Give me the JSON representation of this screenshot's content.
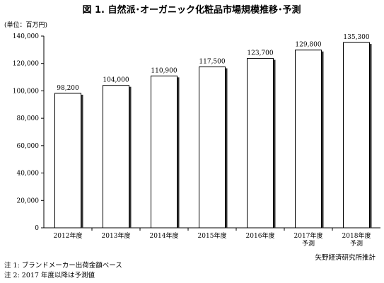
{
  "chart_data": {
    "type": "bar",
    "title": "図 1.  自然派･オーガニック化粧品市場規模推移･予測",
    "ylabel": "(単位：百万円)",
    "xlabel": "",
    "ylim": [
      0,
      140000
    ],
    "yticks": [
      "0",
      "20,000",
      "40,000",
      "60,000",
      "80,000",
      "100,000",
      "120,000",
      "140,000"
    ],
    "categories": [
      [
        "2012年度"
      ],
      [
        "2013年度"
      ],
      [
        "2014年度"
      ],
      [
        "2015年度"
      ],
      [
        "2016年度"
      ],
      [
        "2017年度",
        "予測"
      ],
      [
        "2018年度",
        "予測"
      ]
    ],
    "values": [
      98200,
      104000,
      110900,
      117500,
      123700,
      129800,
      135300
    ],
    "value_labels": [
      "98,200",
      "104,000",
      "110,900",
      "117,500",
      "123,700",
      "129,800",
      "135,300"
    ],
    "grid": false,
    "legend": "none"
  },
  "notes": [
    "注 1:  ブランドメーカー出荷金額ベース",
    "注 2:  2017 年度以降は予測値"
  ],
  "source": "矢野経済研究所推計",
  "colors": {
    "bar": "#ffffff",
    "bar_stroke": "#000000",
    "bar_shadow": "#333333",
    "axis": "#000000"
  }
}
